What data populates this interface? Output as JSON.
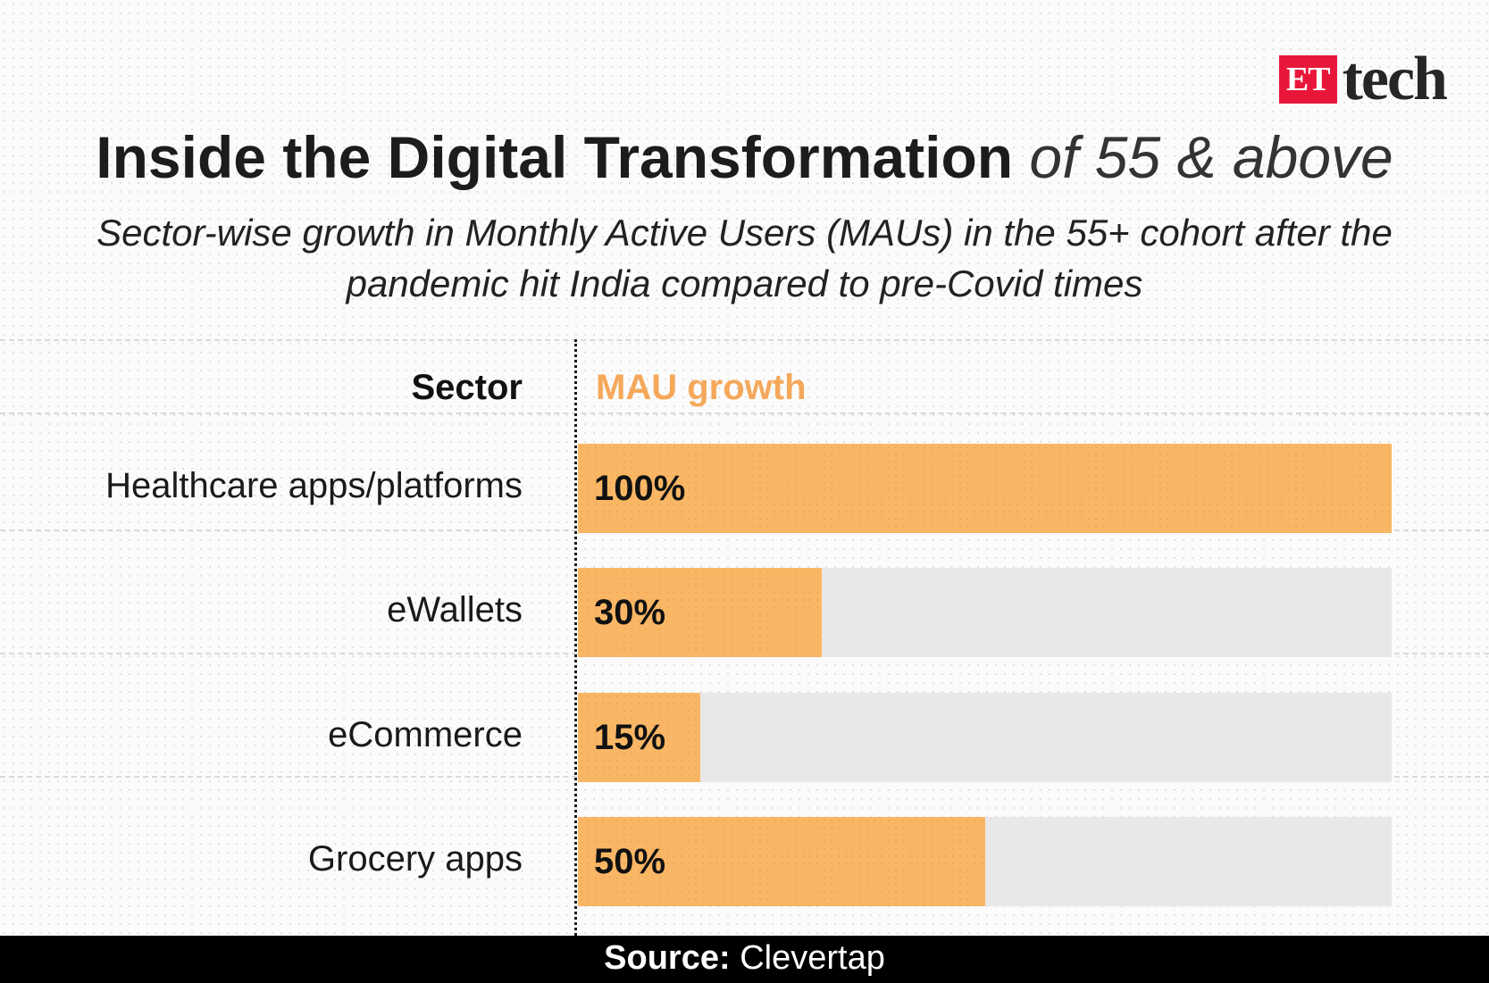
{
  "brand": {
    "et": "ET",
    "tech": "tech"
  },
  "title": {
    "main": "Inside the Digital Transformation",
    "light": "of 55 & above"
  },
  "subtitle": "Sector-wise growth in Monthly Active Users (MAUs) in the 55+ cohort after the pandemic hit India compared to pre-Covid times",
  "footer": {
    "label": "Source:",
    "value": "Clevertap"
  },
  "colors": {
    "bar": "#f9b766",
    "track": "#e8e8e8",
    "header_accent": "#f5a85a",
    "logo_red": "#e8173a"
  },
  "chart_data": {
    "type": "bar",
    "orientation": "horizontal",
    "column_headers": {
      "category": "Sector",
      "value": "MAU growth"
    },
    "categories": [
      "Healthcare apps/platforms",
      "eWallets",
      "eCommerce",
      "Grocery apps"
    ],
    "values": [
      100,
      30,
      15,
      50
    ],
    "value_labels": [
      "100%",
      "30%",
      "15%",
      "50%"
    ],
    "xlim": [
      0,
      100
    ],
    "grid": false
  }
}
